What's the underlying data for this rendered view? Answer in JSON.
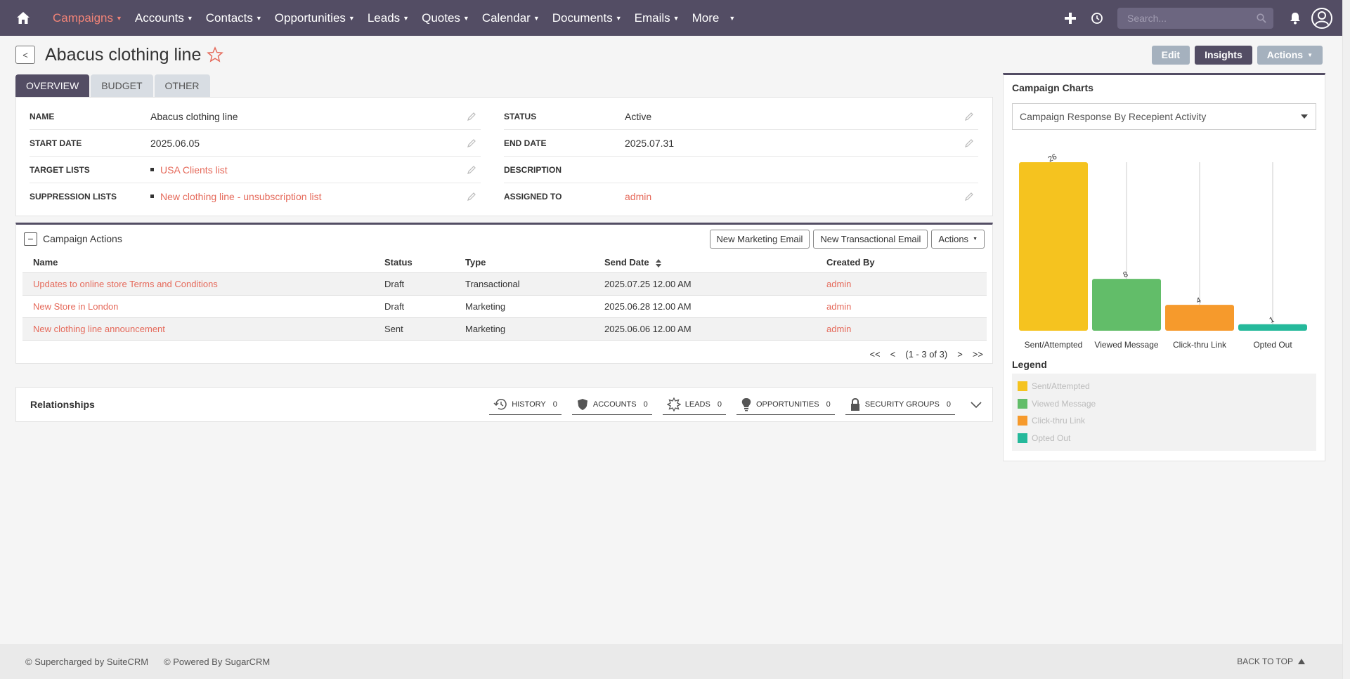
{
  "nav": {
    "items": [
      {
        "label": "Campaigns",
        "active": true
      },
      {
        "label": "Accounts"
      },
      {
        "label": "Contacts"
      },
      {
        "label": "Opportunities"
      },
      {
        "label": "Leads"
      },
      {
        "label": "Quotes"
      },
      {
        "label": "Calendar"
      },
      {
        "label": "Documents"
      },
      {
        "label": "Emails"
      },
      {
        "label": "More"
      }
    ],
    "search_placeholder": "Search..."
  },
  "header": {
    "back_label": "<",
    "title": "Abacus clothing line",
    "edit_label": "Edit",
    "insights_label": "Insights",
    "actions_label": "Actions"
  },
  "tabs": [
    "OVERVIEW",
    "BUDGET",
    "OTHER"
  ],
  "details": {
    "name_label": "NAME",
    "name_value": "Abacus clothing line",
    "status_label": "STATUS",
    "status_value": "Active",
    "start_label": "START DATE",
    "start_value": "2025.06.05",
    "end_label": "END DATE",
    "end_value": "2025.07.31",
    "target_label": "TARGET LISTS",
    "target_value": "USA Clients list",
    "description_label": "DESCRIPTION",
    "suppression_label": "SUPPRESSION LISTS",
    "suppression_value": "New clothing line - unsubscription list",
    "assigned_label": "ASSIGNED TO",
    "assigned_value": "admin"
  },
  "campaign_actions": {
    "title": "Campaign Actions",
    "buttons": {
      "new_marketing": "New Marketing Email",
      "new_transactional": "New Transactional Email",
      "actions": "Actions"
    },
    "columns": [
      "Name",
      "Status",
      "Type",
      "Send Date",
      "Created By"
    ],
    "rows": [
      {
        "name": "Updates to online store Terms and Conditions",
        "status": "Draft",
        "type": "Transactional",
        "send_date": "2025.07.25 12.00 AM",
        "created_by": "admin"
      },
      {
        "name": "New Store in London",
        "status": "Draft",
        "type": "Marketing",
        "send_date": "2025.06.28 12.00 AM",
        "created_by": "admin"
      },
      {
        "name": "New clothing line announcement",
        "status": "Sent",
        "type": "Marketing",
        "send_date": "2025.06.06 12.00 AM",
        "created_by": "admin"
      }
    ],
    "pager": {
      "first": "<<",
      "prev": "<",
      "range": "(1 - 3 of 3)",
      "next": ">",
      "last": ">>"
    }
  },
  "relationships": {
    "title": "Relationships",
    "tabs": [
      {
        "label": "HISTORY",
        "count": "0",
        "icon": "history-icon"
      },
      {
        "label": "ACCOUNTS",
        "count": "0",
        "icon": "shield-icon"
      },
      {
        "label": "LEADS",
        "count": "0",
        "icon": "star-burst-icon"
      },
      {
        "label": "OPPORTUNITIES",
        "count": "0",
        "icon": "lightbulb-icon"
      },
      {
        "label": "SECURITY GROUPS",
        "count": "0",
        "icon": "lock-icon"
      }
    ]
  },
  "chart_panel": {
    "title": "Campaign Charts",
    "select_value": "Campaign Response By Recepient Activity",
    "legend_title": "Legend"
  },
  "chart_data": {
    "type": "bar",
    "categories": [
      "Sent/Attempted",
      "Viewed Message",
      "Click-thru Link",
      "Opted Out"
    ],
    "values": [
      26,
      8,
      4,
      1
    ],
    "colors": [
      "#f5c31f",
      "#62bd69",
      "#f69a2c",
      "#25b99b"
    ],
    "ylim": [
      0,
      26
    ],
    "grid": false,
    "legend": [
      "Sent/Attempted",
      "Viewed Message",
      "Click-thru Link",
      "Opted Out"
    ]
  },
  "footer": {
    "suitecrm": "© Supercharged by SuiteCRM",
    "sugarcrm": "© Powered By SugarCRM",
    "back_to_top": "BACK TO TOP"
  }
}
